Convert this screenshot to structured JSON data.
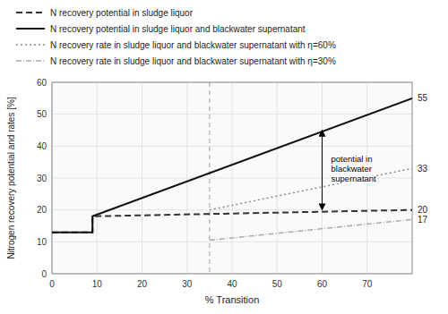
{
  "chart_data": {
    "type": "line",
    "xlabel": "% Transition",
    "ylabel": "Nitrogen recovery potential and rates [%]",
    "xlim": [
      0,
      80
    ],
    "ylim": [
      0,
      60
    ],
    "xticks": [
      0,
      10,
      20,
      30,
      40,
      50,
      60,
      70
    ],
    "yticks": [
      0,
      10,
      20,
      30,
      40,
      50,
      60
    ],
    "grid": true,
    "legend": "top",
    "series": [
      {
        "name": "N recovery potential in sludge liquor",
        "color": "#333333",
        "line_style": "dashed",
        "x": [
          0,
          9,
          9,
          80
        ],
        "values": [
          13,
          13,
          18,
          20
        ]
      },
      {
        "name": "N recovery potential in sludge liquor and blackwater supernatant",
        "color": "#111111",
        "line_style": "solid",
        "x": [
          0,
          9,
          9,
          80
        ],
        "values": [
          13,
          13,
          18,
          55
        ]
      },
      {
        "name": "N recovery rate in sludge liquor and blackwater supernatant with η=60%",
        "color": "#888888",
        "line_style": "dotted",
        "x": [
          35,
          80
        ],
        "values": [
          20,
          33
        ]
      },
      {
        "name": "N recovery rate in sludge liquor and blackwater supernatant with η=30%",
        "color": "#aaaaaa",
        "line_style": "dashdot",
        "x": [
          35,
          80
        ],
        "values": [
          10.5,
          17
        ]
      }
    ],
    "reference_lines": [
      {
        "x": 35,
        "color": "#999999"
      }
    ],
    "arrows": [
      {
        "x": 60,
        "y_from": 45,
        "y_to": 20
      }
    ],
    "annotations": [
      {
        "text": "potential in\nblackwater\nsupernatant",
        "x": 62,
        "y": 33
      }
    ],
    "right_labels": [
      55,
      33,
      20,
      17
    ]
  }
}
